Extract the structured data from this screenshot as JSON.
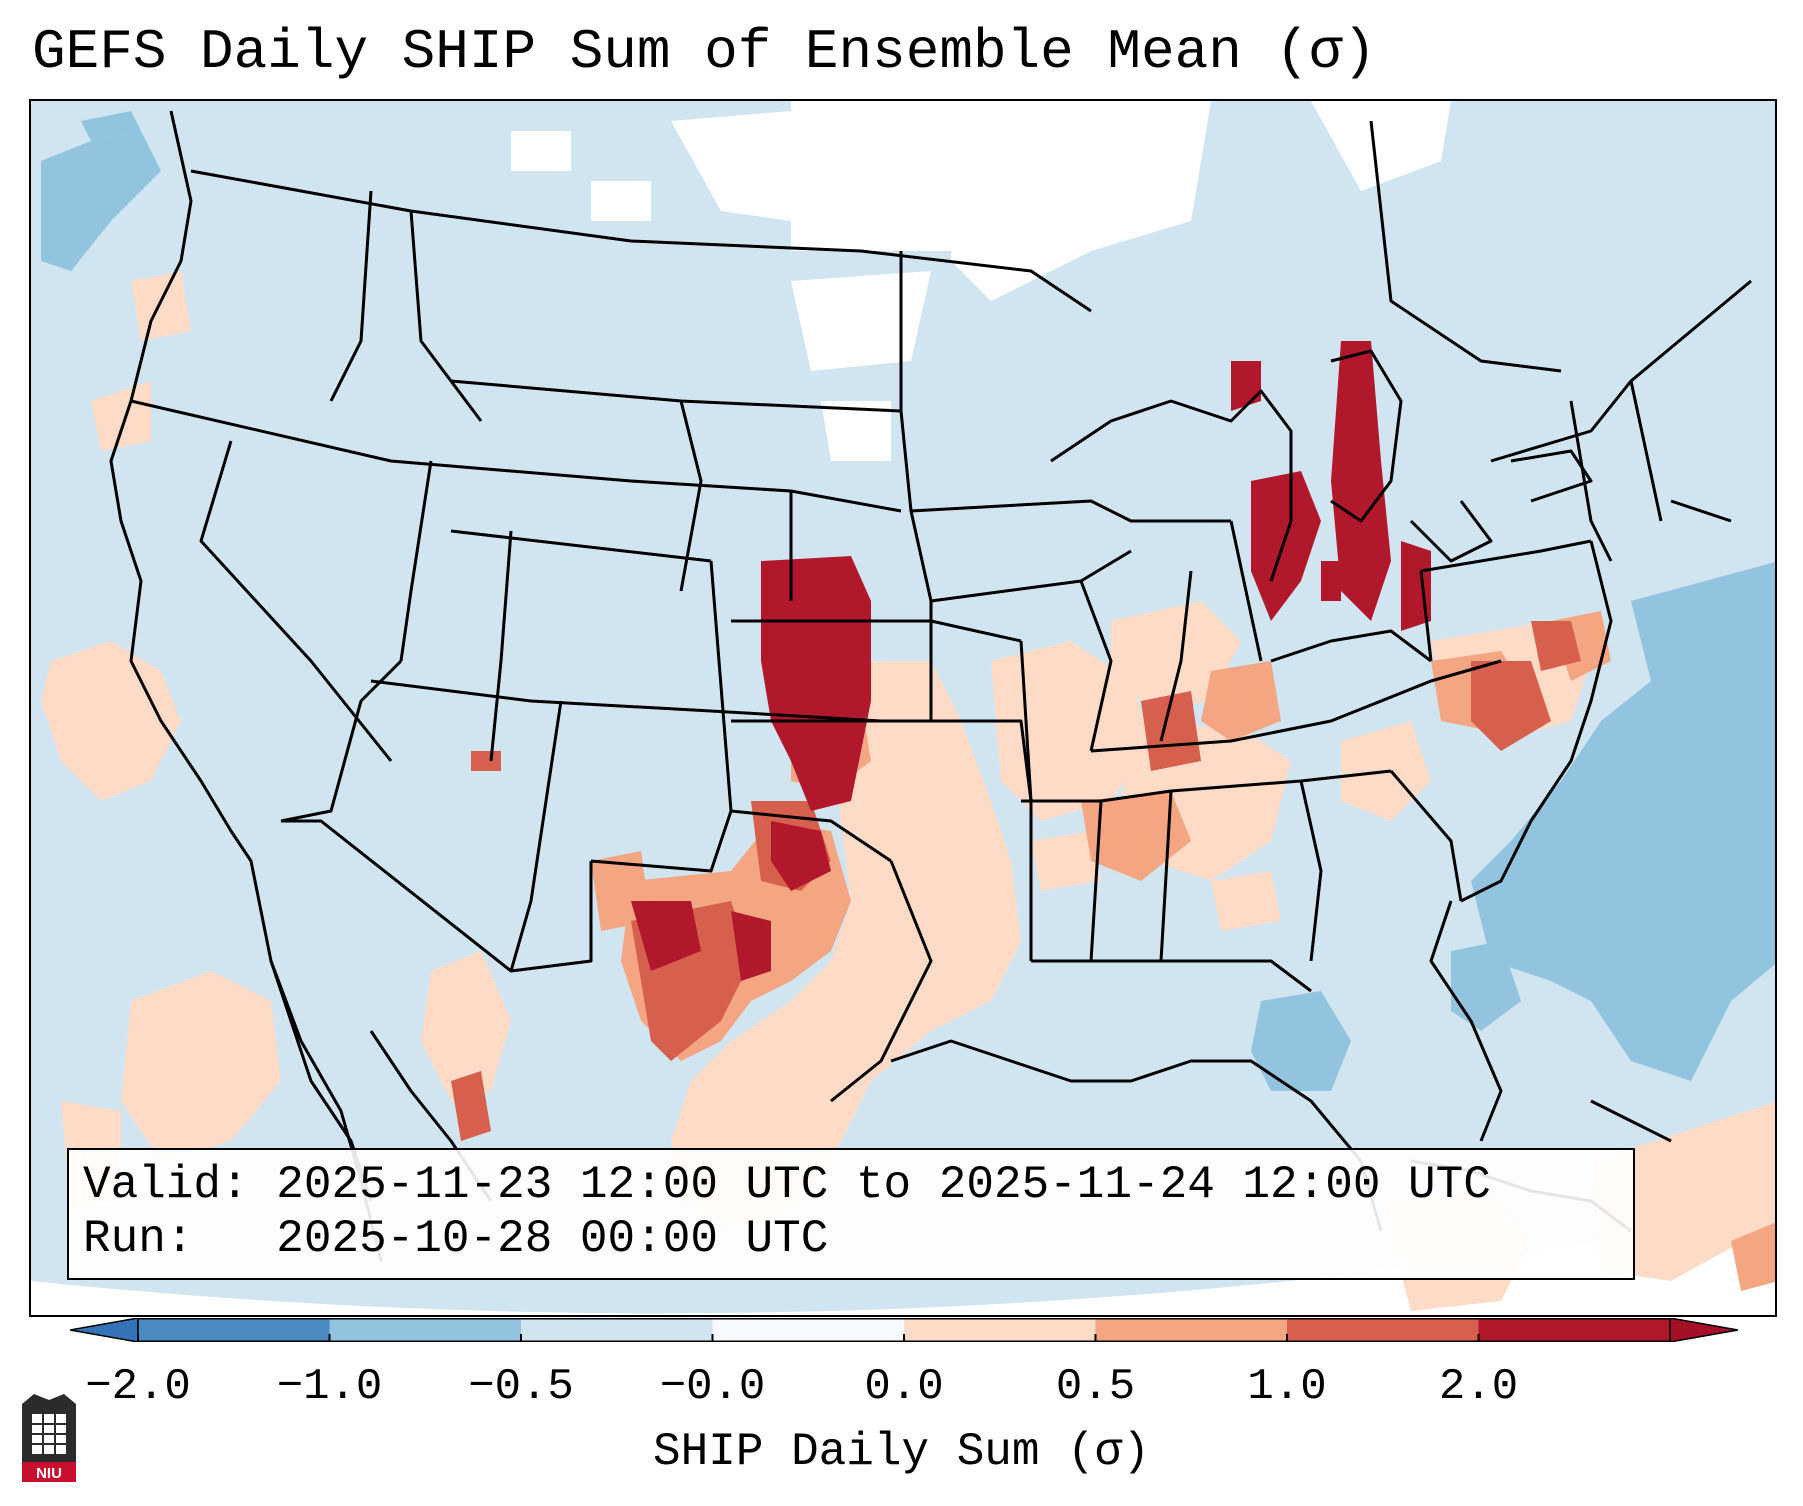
{
  "title": "GEFS Daily SHIP Sum of Ensemble Mean (σ)",
  "info": {
    "valid_label": "Valid:",
    "valid_value": "2025-11-23 12:00 UTC to 2025-11-24 12:00 UTC",
    "run_label": "Run:",
    "run_value": "2025-10-28 00:00 UTC"
  },
  "colorbar": {
    "title": "SHIP Daily Sum (σ)",
    "tick_labels": [
      "−2.0",
      "−1.0",
      "−0.5",
      "−0.0",
      "0.0",
      "0.5",
      "1.0",
      "2.0"
    ],
    "colors": [
      "#4a8bc4",
      "#92c3df",
      "#d1e5f0",
      "#f7fbff",
      "#fddbc7",
      "#f4a582",
      "#d6604d",
      "#b2182b"
    ],
    "extend_low_color": "#3573b9",
    "extend_high_color": "#a50f28"
  },
  "logo": {
    "text": "NIU"
  },
  "map": {
    "ocean_color": "#d1e5f0",
    "land_color": "#d1e5f0",
    "outline_color": "#000000"
  }
}
